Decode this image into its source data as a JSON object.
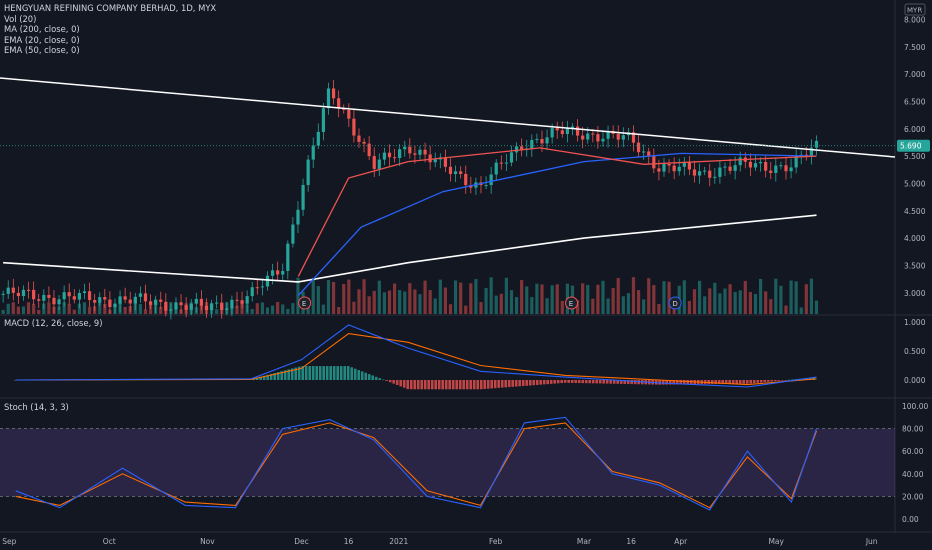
{
  "header": {
    "title": "HENGYUAN REFINING COMPANY BERHAD, 1D, MYX",
    "currency": "MYR"
  },
  "legends": {
    "price": [
      "Vol (20)",
      "MA (200, close, 0)",
      "EMA (20, close, 0)",
      "EMA (50, close, 0)"
    ],
    "macd": "MACD (12, 26, close, 9)",
    "stoch": "Stoch (14, 3, 3)"
  },
  "price_axis": {
    "ticks": [
      "8.000",
      "7.500",
      "7.000",
      "6.500",
      "6.000",
      "5.500",
      "5.000",
      "4.500",
      "4.000",
      "3.500",
      "3.000"
    ],
    "last_price": "5.690"
  },
  "macd_axis": {
    "ticks": [
      "1.000",
      "0.500",
      "0.000"
    ]
  },
  "stoch_axis": {
    "ticks": [
      "100.00",
      "80.00",
      "60.00",
      "40.00",
      "20.00",
      "0.00"
    ]
  },
  "time_axis": {
    "labels": [
      "Sep",
      "Oct",
      "Nov",
      "Dec",
      "16",
      "2021",
      "Feb",
      "Mar",
      "16",
      "Apr",
      "May",
      "Jun"
    ]
  },
  "event_markers": [
    "E",
    "E",
    "D"
  ],
  "colors": {
    "background": "#131722",
    "up": "#26a69a",
    "down": "#ef5350",
    "ma200": "#ffffff",
    "ema20": "#ef5350",
    "ema50": "#2962ff",
    "macd_line": "#2962ff",
    "signal_line": "#ff6d00",
    "stoch_k": "#2962ff",
    "stoch_d": "#ff6d00",
    "stoch_band": "#7e57c2",
    "trendline": "#ffffff"
  },
  "chart_data": [
    {
      "type": "candlestick",
      "title": "HENGYUAN REFINING COMPANY BERHAD, 1D, MYX",
      "unit": "MYR",
      "ylim": [
        2.6,
        8.3
      ],
      "last_close": 5.69,
      "indicators": [
        "Vol (20)",
        "MA (200, close, 0)",
        "EMA (20, close, 0)",
        "EMA (50, close, 0)"
      ],
      "x": [
        "2020-08-28",
        "2020-09-15",
        "2020-10-01",
        "2020-10-15",
        "2020-11-01",
        "2020-11-15",
        "2020-11-25",
        "2020-12-01",
        "2020-12-10",
        "2020-12-16",
        "2020-12-24",
        "2021-01-04",
        "2021-01-15",
        "2021-01-27",
        "2021-02-10",
        "2021-02-23",
        "2021-03-04",
        "2021-03-16",
        "2021-03-25",
        "2021-04-08",
        "2021-04-22",
        "2021-05-06",
        "2021-05-14"
      ],
      "close": [
        2.98,
        2.92,
        2.88,
        2.83,
        2.72,
        2.95,
        3.5,
        4.9,
        6.7,
        6.2,
        5.3,
        5.7,
        5.3,
        4.95,
        5.75,
        5.95,
        5.9,
        5.8,
        5.3,
        5.2,
        5.35,
        5.3,
        5.69
      ],
      "ma200": {
        "x": [
          "2020-08-28",
          "2020-11-30",
          "2021-01-04",
          "2021-03-01",
          "2021-05-14"
        ],
        "y": [
          3.55,
          3.2,
          3.55,
          4.0,
          4.42
        ]
      },
      "ema20": {
        "x": [
          "2020-11-30",
          "2020-12-16",
          "2021-01-04",
          "2021-02-15",
          "2021-03-20",
          "2021-05-14"
        ],
        "y": [
          3.3,
          5.1,
          5.4,
          5.65,
          5.35,
          5.5
        ]
      },
      "ema50": {
        "x": [
          "2020-11-30",
          "2020-12-20",
          "2021-01-15",
          "2021-03-01",
          "2021-04-01",
          "2021-05-14"
        ],
        "y": [
          2.95,
          4.2,
          4.85,
          5.4,
          5.55,
          5.5
        ]
      }
    },
    {
      "type": "line",
      "title": "MACD (12, 26, close, 9)",
      "ylim": [
        -0.2,
        1.1
      ],
      "x": [
        "2020-09-01",
        "2020-11-15",
        "2020-12-01",
        "2020-12-16",
        "2021-01-04",
        "2021-01-27",
        "2021-02-23",
        "2021-03-25",
        "2021-04-22",
        "2021-05-14"
      ],
      "series": [
        {
          "values": [
            0.0,
            0.02,
            0.35,
            0.95,
            0.55,
            0.15,
            0.05,
            -0.05,
            -0.12,
            0.05
          ]
        },
        {
          "values": [
            0.0,
            0.01,
            0.2,
            0.8,
            0.65,
            0.25,
            0.08,
            0.0,
            -0.08,
            0.02
          ]
        }
      ]
    },
    {
      "type": "line",
      "title": "Stoch (14, 3, 3)",
      "ylim": [
        -10,
        105
      ],
      "bands": [
        20,
        80
      ],
      "x": [
        "2020-09-01",
        "2020-09-15",
        "2020-10-05",
        "2020-10-25",
        "2020-11-10",
        "2020-11-25",
        "2020-12-10",
        "2020-12-24",
        "2021-01-10",
        "2021-01-27",
        "2021-02-10",
        "2021-02-23",
        "2021-03-10",
        "2021-03-25",
        "2021-04-10",
        "2021-04-22",
        "2021-05-06",
        "2021-05-14"
      ],
      "series": [
        {
          "values": [
            25,
            10,
            45,
            12,
            10,
            80,
            88,
            70,
            20,
            10,
            85,
            90,
            40,
            30,
            8,
            60,
            15,
            80
          ]
        },
        {
          "values": [
            20,
            12,
            40,
            15,
            12,
            75,
            85,
            72,
            25,
            12,
            80,
            85,
            42,
            32,
            10,
            55,
            18,
            78
          ]
        }
      ]
    }
  ]
}
